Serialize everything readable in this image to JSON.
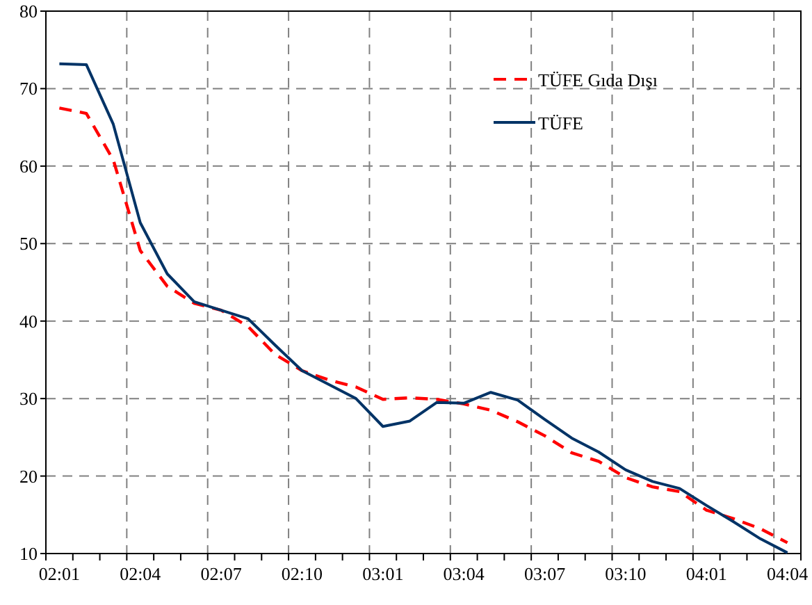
{
  "chart_data": {
    "type": "line",
    "categories": [
      "02:01",
      null,
      null,
      "02:04",
      null,
      null,
      "02:07",
      null,
      null,
      "02:10",
      null,
      null,
      "03:01",
      null,
      null,
      "03:04",
      null,
      null,
      "03:07",
      null,
      null,
      "03:10",
      null,
      null,
      "04:01",
      null,
      null,
      "04:04"
    ],
    "series": [
      {
        "name": "TÜFE Gıda Dışı",
        "color": "#ff0000",
        "line_style": "dashed",
        "values": [
          67.5,
          66.8,
          60.8,
          49.1,
          44.5,
          42.3,
          41.4,
          39.3,
          35.7,
          33.6,
          32.4,
          31.5,
          29.9,
          30.1,
          29.9,
          29.3,
          28.5,
          27.0,
          25.2,
          23.0,
          21.9,
          19.8,
          18.6,
          18.0,
          15.6,
          14.5,
          13.2,
          11.4
        ]
      },
      {
        "name": "TÜFE",
        "color": "#003366",
        "line_style": "solid",
        "values": [
          73.2,
          73.1,
          65.4,
          52.7,
          46.1,
          42.5,
          41.4,
          40.3,
          36.9,
          33.6,
          31.8,
          30.0,
          26.4,
          27.1,
          29.5,
          29.4,
          30.8,
          29.8,
          27.3,
          24.9,
          23.1,
          20.8,
          19.3,
          18.4,
          16.2,
          14.1,
          11.9,
          10.1
        ]
      }
    ],
    "ylim": [
      10,
      80
    ],
    "yticks": [
      10,
      20,
      30,
      40,
      50,
      60,
      70,
      80
    ],
    "grid": true,
    "legend": "top right",
    "marker": "none"
  }
}
